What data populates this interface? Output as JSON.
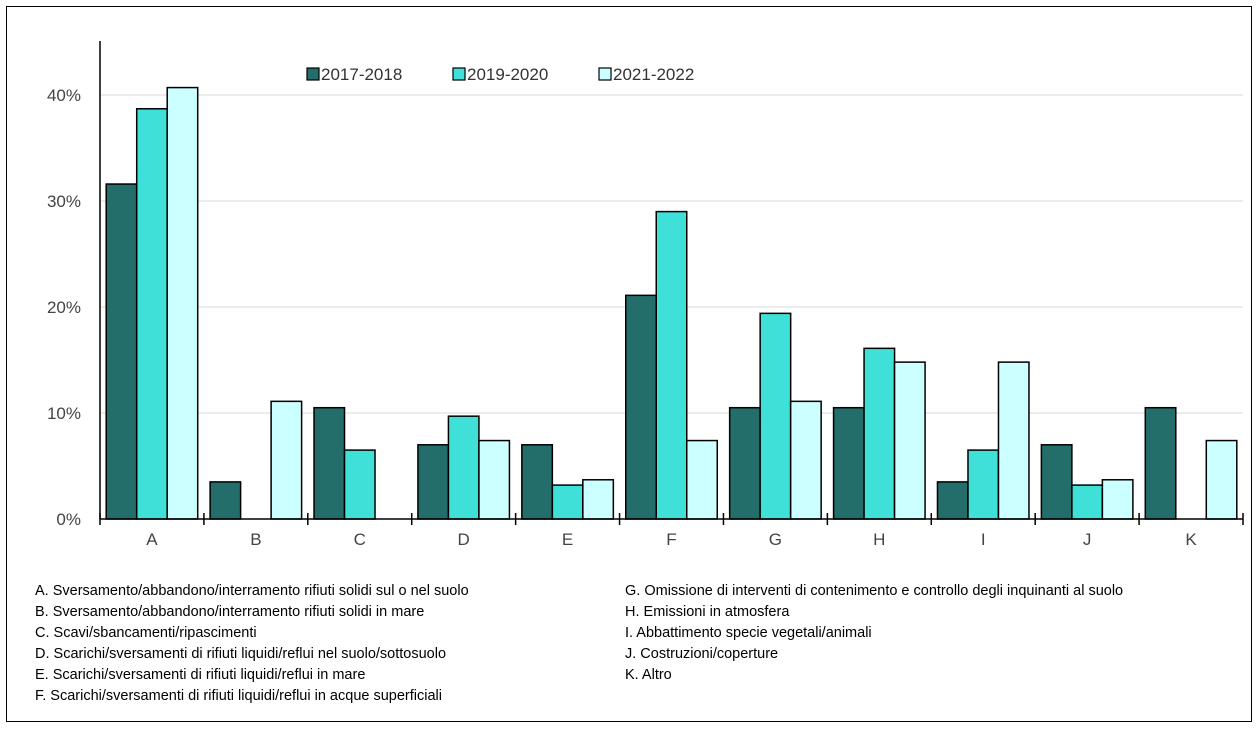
{
  "chart_data": {
    "type": "bar",
    "categories": [
      "A",
      "B",
      "C",
      "D",
      "E",
      "F",
      "G",
      "H",
      "I",
      "J",
      "K"
    ],
    "series": [
      {
        "name": "2017-2018",
        "color": "#236E6A",
        "values": [
          31.6,
          3.5,
          10.5,
          7.0,
          7.0,
          21.1,
          10.5,
          10.5,
          3.5,
          7.0,
          10.5
        ]
      },
      {
        "name": "2019-2020",
        "color": "#3FE0D8",
        "values": [
          38.7,
          0,
          6.5,
          9.7,
          3.2,
          29.0,
          19.4,
          16.1,
          6.5,
          3.2,
          0
        ]
      },
      {
        "name": "2021-2022",
        "color": "#CCFFFF",
        "values": [
          40.7,
          11.1,
          0,
          7.4,
          3.7,
          7.4,
          11.1,
          14.8,
          14.8,
          3.7,
          7.4
        ]
      }
    ],
    "yticks": [
      "0%",
      "10%",
      "20%",
      "30%",
      "40%"
    ],
    "ylim": [
      0,
      45
    ],
    "grid": true,
    "legend": "top-center"
  },
  "notes_left": [
    "A. Sversamento/abbandono/interramento rifiuti solidi sul o nel suolo",
    "B. Sversamento/abbandono/interramento rifiuti solidi in mare",
    "C. Scavi/sbancamenti/ripascimenti",
    "D. Scarichi/sversamenti di rifiuti liquidi/reflui nel suolo/sottosuolo",
    "E. Scarichi/sversamenti di rifiuti liquidi/reflui in mare",
    "F. Scarichi/sversamenti di rifiuti liquidi/reflui in acque superficiali"
  ],
  "notes_right": [
    "G. Omissione di interventi di contenimento e controllo degli inquinanti al suolo",
    "H. Emissioni in atmosfera",
    "I.  Abbattimento specie vegetali/animali",
    "J.  Costruzioni/coperture",
    "K. Altro"
  ]
}
